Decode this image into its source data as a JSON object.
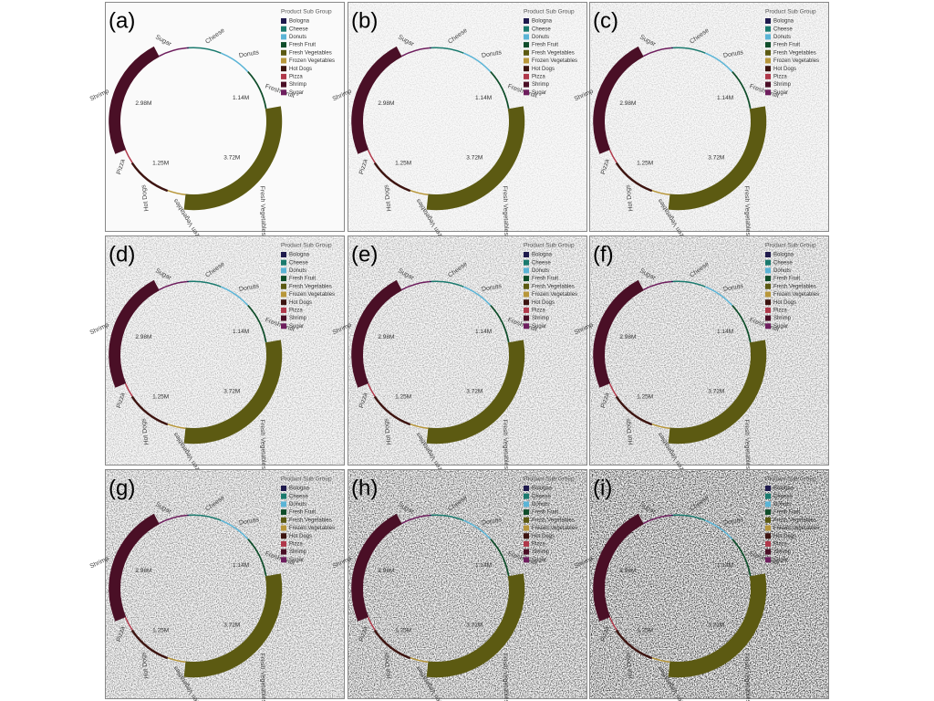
{
  "chart_data": [
    {
      "type": "radial",
      "panel_label": "(a)",
      "legend_title": "Product Sub Group",
      "categories": [
        "Bologna",
        "Cheese",
        "Donuts",
        "Fresh Fruit",
        "Fresh Vegetables",
        "Frozen Vegetables",
        "Hot Dogs",
        "Pizza",
        "Shrimp",
        "Sugar"
      ],
      "values": [
        50000,
        900000,
        900000,
        1140000,
        3720000,
        500000,
        1250000,
        400000,
        2980000,
        800000
      ],
      "value_labels": [
        null,
        null,
        null,
        "1.14M",
        "3.72M",
        null,
        "1.25M",
        null,
        "2.98M",
        null
      ],
      "colors": [
        "#1f1a4d",
        "#1a7a6e",
        "#5ab4d6",
        "#0f4d2a",
        "#5c5a12",
        "#b8973a",
        "#3d1410",
        "#b0384a",
        "#4a0f26",
        "#6e1e5e"
      ]
    },
    {
      "type": "radial",
      "panel_label": "(b)",
      "legend_title": "Product Sub Group",
      "categories": [
        "Bologna",
        "Cheese",
        "Donuts",
        "Fresh Fruit",
        "Fresh Vegetables",
        "Frozen Vegetables",
        "Hot Dogs",
        "Pizza",
        "Shrimp",
        "Sugar"
      ],
      "values": [
        50000,
        900000,
        900000,
        1140000,
        3720000,
        500000,
        1250000,
        400000,
        2980000,
        800000
      ],
      "value_labels": [
        null,
        null,
        null,
        "1.14M",
        "3.72M",
        null,
        "1.25M",
        null,
        "2.98M",
        null
      ],
      "colors": [
        "#1f1a4d",
        "#1a7a6e",
        "#5ab4d6",
        "#0f4d2a",
        "#5c5a12",
        "#b8973a",
        "#3d1410",
        "#b0384a",
        "#4a0f26",
        "#6e1e5e"
      ]
    },
    {
      "type": "radial",
      "panel_label": "(c)",
      "legend_title": "Product Sub Group",
      "categories": [
        "Bologna",
        "Cheese",
        "Donuts",
        "Fresh Fruit",
        "Fresh Vegetables",
        "Frozen Vegetables",
        "Hot Dogs",
        "Pizza",
        "Shrimp",
        "Sugar"
      ],
      "values": [
        50000,
        900000,
        900000,
        1140000,
        3720000,
        500000,
        1250000,
        400000,
        2980000,
        800000
      ],
      "value_labels": [
        null,
        null,
        null,
        "1.14M",
        "3.72M",
        null,
        "1.25M",
        null,
        "2.98M",
        null
      ],
      "colors": [
        "#1f1a4d",
        "#1a7a6e",
        "#5ab4d6",
        "#0f4d2a",
        "#5c5a12",
        "#b8973a",
        "#3d1410",
        "#b0384a",
        "#4a0f26",
        "#6e1e5e"
      ]
    },
    {
      "type": "radial",
      "panel_label": "(d)",
      "legend_title": "Product Sub Group",
      "categories": [
        "Bologna",
        "Cheese",
        "Donuts",
        "Fresh Fruit",
        "Fresh Vegetables",
        "Frozen Vegetables",
        "Hot Dogs",
        "Pizza",
        "Shrimp",
        "Sugar"
      ],
      "values": [
        50000,
        900000,
        900000,
        1140000,
        3720000,
        500000,
        1250000,
        400000,
        2980000,
        800000
      ],
      "value_labels": [
        null,
        null,
        null,
        "1.14M",
        "3.72M",
        null,
        "1.25M",
        null,
        "2.98M",
        null
      ],
      "colors": [
        "#1f1a4d",
        "#1a7a6e",
        "#5ab4d6",
        "#0f4d2a",
        "#5c5a12",
        "#b8973a",
        "#3d1410",
        "#b0384a",
        "#4a0f26",
        "#6e1e5e"
      ]
    },
    {
      "type": "radial",
      "panel_label": "(e)",
      "legend_title": "Product Sub Group",
      "categories": [
        "Bologna",
        "Cheese",
        "Donuts",
        "Fresh Fruit",
        "Fresh Vegetables",
        "Frozen Vegetables",
        "Hot Dogs",
        "Pizza",
        "Shrimp",
        "Sugar"
      ],
      "values": [
        50000,
        900000,
        900000,
        1140000,
        3720000,
        500000,
        1250000,
        400000,
        2980000,
        800000
      ],
      "value_labels": [
        null,
        null,
        null,
        "1.14M",
        "3.72M",
        null,
        "1.25M",
        null,
        "2.98M",
        null
      ],
      "colors": [
        "#1f1a4d",
        "#1a7a6e",
        "#5ab4d6",
        "#0f4d2a",
        "#5c5a12",
        "#b8973a",
        "#3d1410",
        "#b0384a",
        "#4a0f26",
        "#6e1e5e"
      ]
    },
    {
      "type": "radial",
      "panel_label": "(f)",
      "legend_title": "Product Sub Group",
      "categories": [
        "Bologna",
        "Cheese",
        "Donuts",
        "Fresh Fruit",
        "Fresh Vegetables",
        "Frozen Vegetables",
        "Hot Dogs",
        "Pizza",
        "Shrimp",
        "Sugar"
      ],
      "values": [
        50000,
        900000,
        900000,
        1140000,
        3720000,
        500000,
        1250000,
        400000,
        2980000,
        800000
      ],
      "value_labels": [
        null,
        null,
        null,
        "1.14M",
        "3.72M",
        null,
        "1.25M",
        null,
        "2.98M",
        null
      ],
      "colors": [
        "#1f1a4d",
        "#1a7a6e",
        "#5ab4d6",
        "#0f4d2a",
        "#5c5a12",
        "#b8973a",
        "#3d1410",
        "#b0384a",
        "#4a0f26",
        "#6e1e5e"
      ]
    },
    {
      "type": "radial",
      "panel_label": "(g)",
      "legend_title": "Product Sub Group",
      "categories": [
        "Bologna",
        "Cheese",
        "Donuts",
        "Fresh Fruit",
        "Fresh Vegetables",
        "Frozen Vegetables",
        "Hot Dogs",
        "Pizza",
        "Shrimp",
        "Sugar"
      ],
      "values": [
        50000,
        900000,
        900000,
        1140000,
        3720000,
        500000,
        1250000,
        400000,
        2980000,
        800000
      ],
      "value_labels": [
        null,
        null,
        null,
        "1.14M",
        "3.72M",
        null,
        "1.25M",
        null,
        "2.98M",
        null
      ],
      "colors": [
        "#1f1a4d",
        "#1a7a6e",
        "#5ab4d6",
        "#0f4d2a",
        "#5c5a12",
        "#b8973a",
        "#3d1410",
        "#b0384a",
        "#4a0f26",
        "#6e1e5e"
      ]
    },
    {
      "type": "radial",
      "panel_label": "(h)",
      "legend_title": "Product Sub Group",
      "categories": [
        "Bologna",
        "Cheese",
        "Donuts",
        "Fresh Fruit",
        "Fresh Vegetables",
        "Frozen Vegetables",
        "Hot Dogs",
        "Pizza",
        "Shrimp",
        "Sugar"
      ],
      "values": [
        50000,
        900000,
        900000,
        1140000,
        3720000,
        500000,
        1250000,
        400000,
        2980000,
        800000
      ],
      "value_labels": [
        null,
        null,
        null,
        "1.14M",
        "3.72M",
        null,
        "1.25M",
        null,
        "2.98M",
        null
      ],
      "colors": [
        "#1f1a4d",
        "#1a7a6e",
        "#5ab4d6",
        "#0f4d2a",
        "#5c5a12",
        "#b8973a",
        "#3d1410",
        "#b0384a",
        "#4a0f26",
        "#6e1e5e"
      ]
    },
    {
      "type": "radial",
      "panel_label": "(i)",
      "legend_title": "Product Sub Group",
      "categories": [
        "Bologna",
        "Cheese",
        "Donuts",
        "Fresh Fruit",
        "Fresh Vegetables",
        "Frozen Vegetables",
        "Hot Dogs",
        "Pizza",
        "Shrimp",
        "Sugar"
      ],
      "values": [
        50000,
        900000,
        900000,
        1140000,
        3720000,
        500000,
        1250000,
        400000,
        2980000,
        800000
      ],
      "value_labels": [
        null,
        null,
        null,
        "1.14M",
        "3.72M",
        null,
        "1.25M",
        null,
        "2.98M",
        null
      ],
      "colors": [
        "#1f1a4d",
        "#1a7a6e",
        "#5ab4d6",
        "#0f4d2a",
        "#5c5a12",
        "#b8973a",
        "#3d1410",
        "#b0384a",
        "#4a0f26",
        "#6e1e5e"
      ]
    }
  ]
}
